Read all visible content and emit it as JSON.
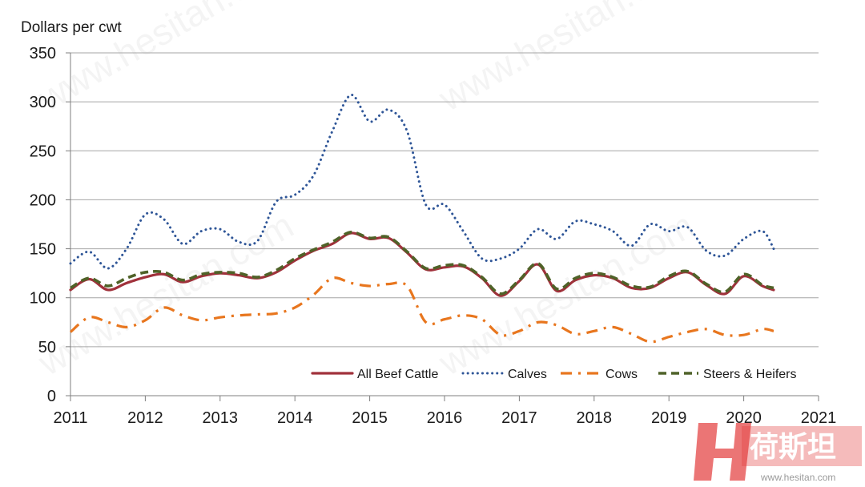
{
  "chart_data": {
    "type": "line",
    "title": "",
    "xlabel": "",
    "ylabel": "Dollars per cwt",
    "xlim": [
      2011,
      2021
    ],
    "ylim": [
      0,
      350
    ],
    "xticks": [
      "2011",
      "2012",
      "2013",
      "2014",
      "2015",
      "2016",
      "2017",
      "2018",
      "2019",
      "2020",
      "2021"
    ],
    "yticks": [
      "0",
      "50",
      "100",
      "150",
      "200",
      "250",
      "300",
      "350"
    ],
    "grid": "horizontal",
    "legend_position": "bottom-right",
    "series": [
      {
        "name": "All Beef Cattle",
        "color": "#a0313b",
        "style": "solid",
        "x": [
          2011.0,
          2011.25,
          2011.5,
          2011.75,
          2012.0,
          2012.25,
          2012.5,
          2012.75,
          2013.0,
          2013.25,
          2013.5,
          2013.75,
          2014.0,
          2014.25,
          2014.5,
          2014.75,
          2015.0,
          2015.25,
          2015.5,
          2015.75,
          2016.0,
          2016.25,
          2016.5,
          2016.75,
          2017.0,
          2017.25,
          2017.5,
          2017.75,
          2018.0,
          2018.25,
          2018.5,
          2018.75,
          2019.0,
          2019.25,
          2019.5,
          2019.75,
          2020.0,
          2020.25,
          2020.4
        ],
        "values": [
          108,
          119,
          108,
          115,
          121,
          124,
          116,
          122,
          125,
          123,
          120,
          126,
          138,
          148,
          155,
          166,
          160,
          161,
          146,
          129,
          131,
          132,
          120,
          102,
          117,
          134,
          107,
          118,
          123,
          120,
          110,
          110,
          120,
          126,
          113,
          104,
          122,
          112,
          108
        ]
      },
      {
        "name": "Calves",
        "color": "#2e5597",
        "style": "dotted",
        "x": [
          2011.0,
          2011.25,
          2011.5,
          2011.75,
          2012.0,
          2012.25,
          2012.5,
          2012.75,
          2013.0,
          2013.25,
          2013.5,
          2013.75,
          2014.0,
          2014.25,
          2014.5,
          2014.75,
          2015.0,
          2015.25,
          2015.5,
          2015.75,
          2016.0,
          2016.25,
          2016.5,
          2016.75,
          2017.0,
          2017.25,
          2017.5,
          2017.75,
          2018.0,
          2018.25,
          2018.5,
          2018.75,
          2019.0,
          2019.25,
          2019.5,
          2019.75,
          2020.0,
          2020.25,
          2020.4
        ],
        "values": [
          135,
          147,
          130,
          150,
          185,
          180,
          155,
          168,
          170,
          157,
          158,
          198,
          205,
          225,
          270,
          307,
          280,
          292,
          270,
          195,
          195,
          168,
          140,
          140,
          150,
          170,
          160,
          178,
          175,
          168,
          153,
          175,
          168,
          172,
          148,
          143,
          160,
          168,
          150
        ]
      },
      {
        "name": "Cows",
        "color": "#e8761e",
        "style": "dash-dot",
        "x": [
          2011.0,
          2011.25,
          2011.5,
          2011.75,
          2012.0,
          2012.25,
          2012.5,
          2012.75,
          2013.0,
          2013.25,
          2013.5,
          2013.75,
          2014.0,
          2014.25,
          2014.5,
          2014.75,
          2015.0,
          2015.25,
          2015.5,
          2015.75,
          2016.0,
          2016.25,
          2016.5,
          2016.75,
          2017.0,
          2017.25,
          2017.5,
          2017.75,
          2018.0,
          2018.25,
          2018.5,
          2018.75,
          2019.0,
          2019.25,
          2019.5,
          2019.75,
          2020.0,
          2020.25,
          2020.4
        ],
        "values": [
          65,
          80,
          75,
          70,
          77,
          90,
          82,
          77,
          80,
          82,
          83,
          84,
          90,
          103,
          120,
          115,
          112,
          114,
          112,
          75,
          78,
          82,
          78,
          62,
          66,
          75,
          72,
          63,
          66,
          70,
          63,
          55,
          60,
          65,
          68,
          62,
          62,
          68,
          66
        ]
      },
      {
        "name": "Steers & Heifers",
        "color": "#4f6228",
        "style": "dashed",
        "x": [
          2011.0,
          2011.25,
          2011.5,
          2011.75,
          2012.0,
          2012.25,
          2012.5,
          2012.75,
          2013.0,
          2013.25,
          2013.5,
          2013.75,
          2014.0,
          2014.25,
          2014.5,
          2014.75,
          2015.0,
          2015.25,
          2015.5,
          2015.75,
          2016.0,
          2016.25,
          2016.5,
          2016.75,
          2017.0,
          2017.25,
          2017.5,
          2017.75,
          2018.0,
          2018.25,
          2018.5,
          2018.75,
          2019.0,
          2019.25,
          2019.5,
          2019.75,
          2020.0,
          2020.25,
          2020.4
        ],
        "values": [
          110,
          120,
          112,
          120,
          126,
          126,
          118,
          124,
          126,
          125,
          121,
          128,
          140,
          149,
          157,
          167,
          161,
          162,
          147,
          130,
          133,
          133,
          121,
          104,
          118,
          135,
          109,
          120,
          125,
          121,
          112,
          111,
          122,
          127,
          114,
          106,
          124,
          113,
          110
        ]
      }
    ]
  },
  "watermark": {
    "text": "www.hesitan.com",
    "logo_text": "荷斯坦",
    "logo_url": "www.hesitan.com"
  }
}
